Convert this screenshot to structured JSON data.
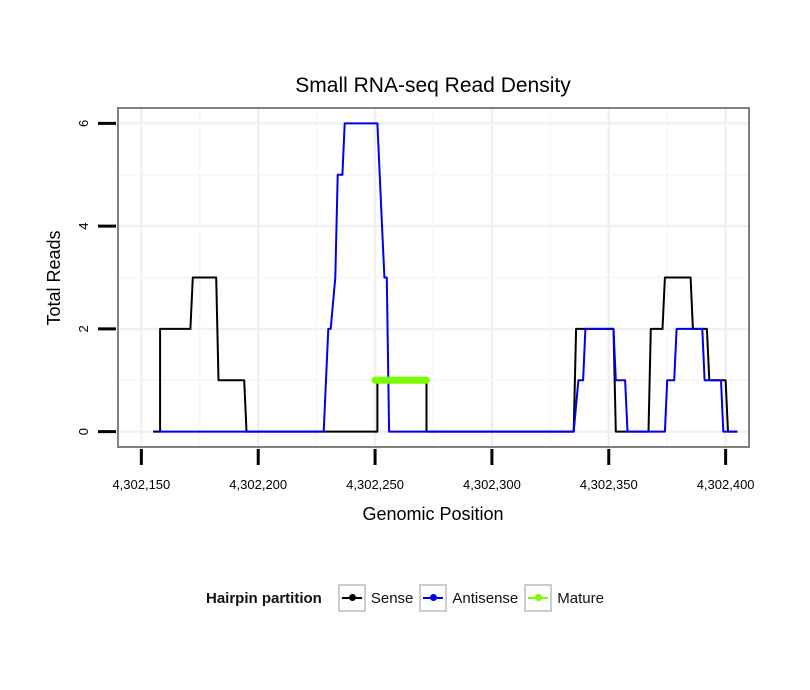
{
  "chart_data": {
    "type": "line",
    "title": "Small RNA-seq Read Density",
    "xlabel": "Genomic Position",
    "ylabel": "Total Reads",
    "xlim": [
      4302140,
      4302410
    ],
    "ylim": [
      -0.3,
      6.3
    ],
    "xticks": [
      4302150,
      4302200,
      4302250,
      4302300,
      4302350,
      4302400
    ],
    "xtick_labels": [
      "4,302,150",
      "4,302,200",
      "4,302,250",
      "4,302,300",
      "4,302,350",
      "4,302,400"
    ],
    "yticks": [
      0,
      2,
      4,
      6
    ],
    "ytick_labels": [
      "0",
      "2",
      "4",
      "6"
    ],
    "grid": true,
    "series": [
      {
        "name": "Sense",
        "color": "#000000",
        "x": [
          4302155,
          4302158,
          4302158,
          4302171,
          4302172,
          4302182,
          4302183,
          4302194,
          4302195,
          4302251,
          4302251,
          4302272,
          4302272,
          4302335,
          4302336,
          4302352,
          4302353,
          4302367,
          4302368,
          4302373,
          4302374,
          4302385,
          4302386,
          4302392,
          4302393,
          4302396,
          4302397,
          4302400,
          4302401,
          4302405
        ],
        "values": [
          0,
          0,
          2,
          2,
          3,
          3,
          1,
          1,
          0,
          0,
          1,
          1,
          0,
          0,
          2,
          2,
          0,
          0,
          2,
          2,
          3,
          3,
          2,
          2,
          1,
          1,
          1,
          1,
          0,
          0
        ]
      },
      {
        "name": "Antisense",
        "color": "#0000ee",
        "x": [
          4302157,
          4302228,
          4302230,
          4302231,
          4302233,
          4302234,
          4302236,
          4302237,
          4302251,
          4302252,
          4302254,
          4302255,
          4302256,
          4302257,
          4302335,
          4302337,
          4302339,
          4302340,
          4302352,
          4302353,
          4302357,
          4302358,
          4302360,
          4302374,
          4302375,
          4302378,
          4302379,
          4302390,
          4302391,
          4302398,
          4302399,
          4302405
        ],
        "values": [
          0,
          0,
          2,
          2,
          3,
          5,
          5,
          6,
          6,
          5,
          3,
          3,
          0,
          0,
          0,
          1,
          1,
          2,
          2,
          1,
          1,
          0,
          0,
          0,
          1,
          1,
          2,
          2,
          1,
          1,
          0,
          0
        ]
      },
      {
        "name": "Mature",
        "color": "#7cfc00",
        "x": [
          4302250,
          4302272
        ],
        "values": [
          1,
          1
        ]
      }
    ],
    "legend": {
      "title": "Hairpin partition",
      "placement": "bottom",
      "items": [
        "Sense",
        "Antisense",
        "Mature"
      ]
    }
  }
}
